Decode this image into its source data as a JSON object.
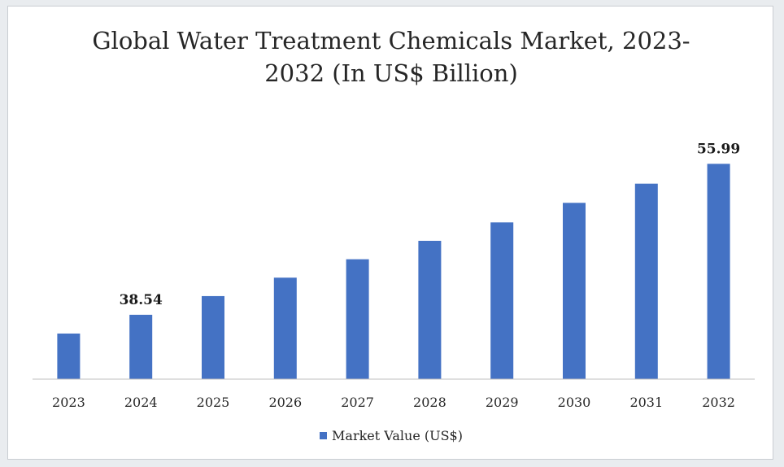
{
  "chart_data": {
    "type": "bar",
    "title_line1": "Global Water Treatment Chemicals Market, 2023-",
    "title_line2": "2032 (In US$ Billion)",
    "categories": [
      "2023",
      "2024",
      "2025",
      "2026",
      "2027",
      "2028",
      "2029",
      "2030",
      "2031",
      "2032"
    ],
    "series": [
      {
        "name": "Market Value (US$)",
        "values": [
          36.37,
          38.54,
          40.7,
          42.83,
          44.96,
          47.09,
          49.22,
          51.48,
          53.7,
          55.99
        ],
        "color": "#4472c4"
      }
    ],
    "data_labels": [
      {
        "index": 1,
        "text": "38.54"
      },
      {
        "index": 9,
        "text": "55.99"
      }
    ],
    "ylim": [
      31.1,
      58
    ],
    "grid": false,
    "legend_position": "bottom"
  }
}
